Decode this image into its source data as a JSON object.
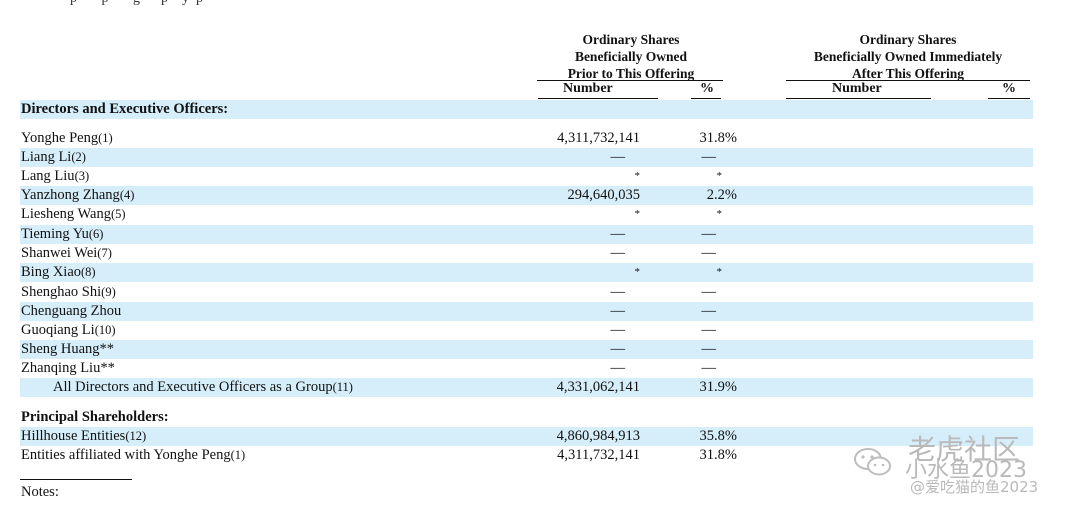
{
  "table": {
    "header_prior": [
      "Ordinary Shares",
      "Beneficially Owned",
      "Prior to This Offering"
    ],
    "header_after": [
      "Ordinary Shares",
      "Beneficially Owned Immediately",
      "After This Offering"
    ],
    "col_number": "Number",
    "col_pct": "%",
    "col_number_after": "Number",
    "col_pct_after": "%",
    "rows": [
      {
        "name": "Directors and Executive Officers:",
        "fn": "",
        "number": "",
        "pct": ""
      },
      {
        "name": "Yonghe Peng",
        "fn": "(1)",
        "number": "4,311,732,141",
        "pct": "31.8%"
      },
      {
        "name": "Liang Li",
        "fn": "(2)",
        "number": "—",
        "pct": "—"
      },
      {
        "name": "Lang Liu",
        "fn": "(3)",
        "number": "*",
        "pct": "*"
      },
      {
        "name": "Yanzhong Zhang",
        "fn": "(4)",
        "number": "294,640,035",
        "pct": "2.2%"
      },
      {
        "name": "Liesheng Wang",
        "fn": "(5)",
        "number": "*",
        "pct": "*"
      },
      {
        "name": "Tieming Yu",
        "fn": "(6)",
        "number": "—",
        "pct": "—"
      },
      {
        "name": "Shanwei Wei",
        "fn": "(7)",
        "number": "—",
        "pct": "—"
      },
      {
        "name": "Bing Xiao",
        "fn": "(8)",
        "number": "*",
        "pct": "*"
      },
      {
        "name": "Shenghao Shi",
        "fn": "(9)",
        "number": "—",
        "pct": "—"
      },
      {
        "name": "Chenguang Zhou",
        "fn": "",
        "number": "—",
        "pct": "—"
      },
      {
        "name": "Guoqiang Li",
        "fn": "(10)",
        "number": "—",
        "pct": "—"
      },
      {
        "name": "Sheng Huang**",
        "fn": "",
        "number": "—",
        "pct": "—"
      },
      {
        "name": "Zhanqing Liu**",
        "fn": "",
        "number": "—",
        "pct": "—"
      },
      {
        "name": "All Directors and Executive Officers as a Group",
        "fn": "(11)",
        "number": "4,331,062,141",
        "pct": "31.9%"
      },
      {
        "name": "Principal Shareholders:",
        "fn": "",
        "number": "",
        "pct": ""
      },
      {
        "name": "Hillhouse Entities",
        "fn": "(12)",
        "number": "4,860,984,913",
        "pct": "35.8%"
      },
      {
        "name": "Entities affiliated with Yonghe Peng",
        "fn": "(1)",
        "number": "4,311,732,141",
        "pct": "31.8%"
      }
    ]
  },
  "notes_label": "Notes:",
  "watermark": {
    "line1": "老虎社区",
    "line2": "小水鱼2023",
    "line3": "@爱吃猫的鱼2023"
  },
  "colors": {
    "row_shade": "#d6eefa",
    "text": "#111111",
    "watermark": "#b9b9b9"
  }
}
